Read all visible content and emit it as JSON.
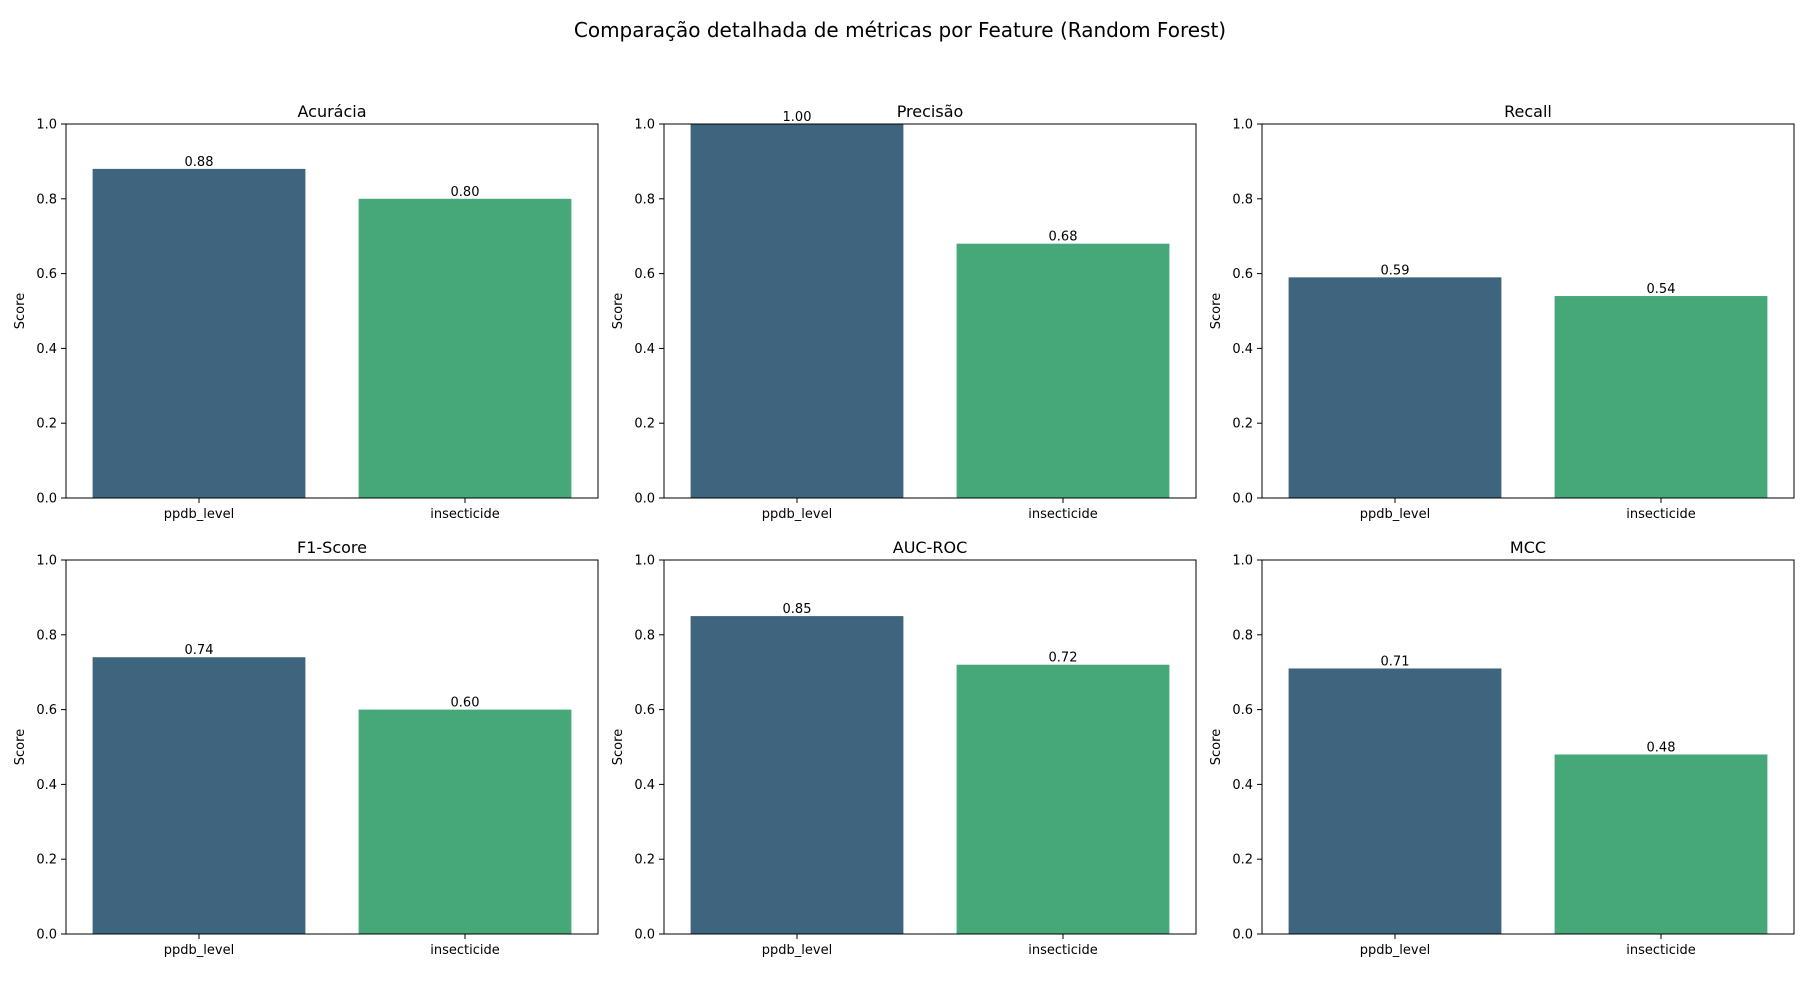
{
  "figure": {
    "title": "Comparação detalhada de métricas por Feature (Random Forest)"
  },
  "chart_data": [
    {
      "type": "bar",
      "title": "Acurácia",
      "categories": [
        "ppdb_level",
        "insecticide"
      ],
      "values": [
        0.88,
        0.8
      ],
      "value_labels": [
        "0.88",
        "0.80"
      ],
      "colors": [
        "#3e647e",
        "#46a778"
      ],
      "xlabel": "",
      "ylabel": "Score",
      "ylim": [
        0,
        1.0
      ],
      "yticks": [
        0.0,
        0.2,
        0.4,
        0.6,
        0.8,
        1.0
      ],
      "ytick_labels": [
        "0.0",
        "0.2",
        "0.4",
        "0.6",
        "0.8",
        "1.0"
      ],
      "grid": false
    },
    {
      "type": "bar",
      "title": "Precisão",
      "categories": [
        "ppdb_level",
        "insecticide"
      ],
      "values": [
        1.0,
        0.68
      ],
      "value_labels": [
        "1.00",
        "0.68"
      ],
      "colors": [
        "#3e647e",
        "#46a778"
      ],
      "xlabel": "",
      "ylabel": "Score",
      "ylim": [
        0,
        1.0
      ],
      "yticks": [
        0.0,
        0.2,
        0.4,
        0.6,
        0.8,
        1.0
      ],
      "ytick_labels": [
        "0.0",
        "0.2",
        "0.4",
        "0.6",
        "0.8",
        "1.0"
      ],
      "grid": false
    },
    {
      "type": "bar",
      "title": "Recall",
      "categories": [
        "ppdb_level",
        "insecticide"
      ],
      "values": [
        0.59,
        0.54
      ],
      "value_labels": [
        "0.59",
        "0.54"
      ],
      "colors": [
        "#3e647e",
        "#46a778"
      ],
      "xlabel": "",
      "ylabel": "Score",
      "ylim": [
        0,
        1.0
      ],
      "yticks": [
        0.0,
        0.2,
        0.4,
        0.6,
        0.8,
        1.0
      ],
      "ytick_labels": [
        "0.0",
        "0.2",
        "0.4",
        "0.6",
        "0.8",
        "1.0"
      ],
      "grid": false
    },
    {
      "type": "bar",
      "title": "F1-Score",
      "categories": [
        "ppdb_level",
        "insecticide"
      ],
      "values": [
        0.74,
        0.6
      ],
      "value_labels": [
        "0.74",
        "0.60"
      ],
      "colors": [
        "#3e647e",
        "#46a778"
      ],
      "xlabel": "",
      "ylabel": "Score",
      "ylim": [
        0,
        1.0
      ],
      "yticks": [
        0.0,
        0.2,
        0.4,
        0.6,
        0.8,
        1.0
      ],
      "ytick_labels": [
        "0.0",
        "0.2",
        "0.4",
        "0.6",
        "0.8",
        "1.0"
      ],
      "grid": false
    },
    {
      "type": "bar",
      "title": "AUC-ROC",
      "categories": [
        "ppdb_level",
        "insecticide"
      ],
      "values": [
        0.85,
        0.72
      ],
      "value_labels": [
        "0.85",
        "0.72"
      ],
      "colors": [
        "#3e647e",
        "#46a778"
      ],
      "xlabel": "",
      "ylabel": "Score",
      "ylim": [
        0,
        1.0
      ],
      "yticks": [
        0.0,
        0.2,
        0.4,
        0.6,
        0.8,
        1.0
      ],
      "ytick_labels": [
        "0.0",
        "0.2",
        "0.4",
        "0.6",
        "0.8",
        "1.0"
      ],
      "grid": false
    },
    {
      "type": "bar",
      "title": "MCC",
      "categories": [
        "ppdb_level",
        "insecticide"
      ],
      "values": [
        0.71,
        0.48
      ],
      "value_labels": [
        "0.71",
        "0.48"
      ],
      "colors": [
        "#3e647e",
        "#46a778"
      ],
      "xlabel": "",
      "ylabel": "Score",
      "ylim": [
        0,
        1.0
      ],
      "yticks": [
        0.0,
        0.2,
        0.4,
        0.6,
        0.8,
        1.0
      ],
      "ytick_labels": [
        "0.0",
        "0.2",
        "0.4",
        "0.6",
        "0.8",
        "1.0"
      ],
      "grid": false
    }
  ]
}
